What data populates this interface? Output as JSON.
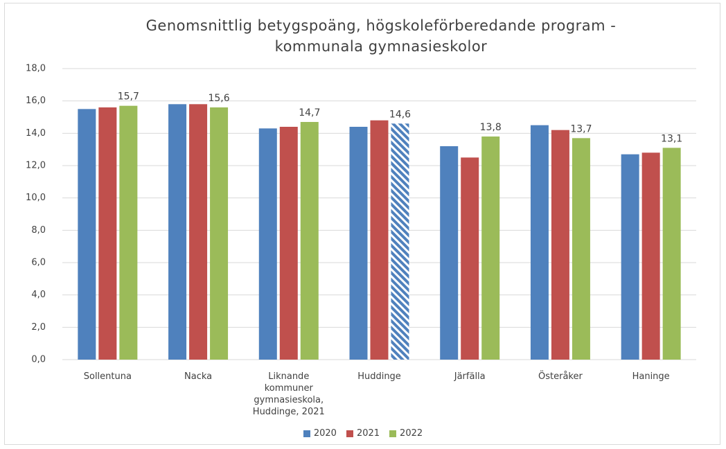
{
  "chart_data": {
    "type": "bar",
    "title": "Genomsnittlig betygspoäng, högskoleförberedande program - kommunala gymnasieskolor",
    "categories": [
      "Sollentuna",
      "Nacka",
      "Liknande kommuner gymnasieskola, Huddinge, 2021",
      "Huddinge",
      "Järfälla",
      "Österåker",
      "Haninge"
    ],
    "series": [
      {
        "name": "2020",
        "color": "#4f81bd",
        "values": [
          15.5,
          15.8,
          14.3,
          14.4,
          13.2,
          14.5,
          12.7
        ]
      },
      {
        "name": "2021",
        "color": "#c0504d",
        "values": [
          15.6,
          15.8,
          14.4,
          14.8,
          12.5,
          14.2,
          12.8
        ]
      },
      {
        "name": "2022",
        "color": "#9bbb59",
        "values": [
          15.7,
          15.6,
          14.7,
          14.6,
          13.8,
          13.7,
          13.1
        ],
        "value_labels": [
          "15,7",
          "15,6",
          "14,7",
          "14,6",
          "13,8",
          "13,7",
          "13,1"
        ],
        "hatched": [
          3
        ]
      }
    ],
    "ylim": [
      0,
      18
    ],
    "yticks": [
      {
        "value": 0,
        "label": "0,0"
      },
      {
        "value": 2,
        "label": "2,0"
      },
      {
        "value": 4,
        "label": "4,0"
      },
      {
        "value": 6,
        "label": "6,0"
      },
      {
        "value": 8,
        "label": "8,0"
      },
      {
        "value": 10,
        "label": "10,0"
      },
      {
        "value": 12,
        "label": "12,0"
      },
      {
        "value": 14,
        "label": "14,0"
      },
      {
        "value": 16,
        "label": "16,0"
      },
      {
        "value": 18,
        "label": "18,0"
      }
    ],
    "grid": true,
    "legend": "bottom"
  }
}
